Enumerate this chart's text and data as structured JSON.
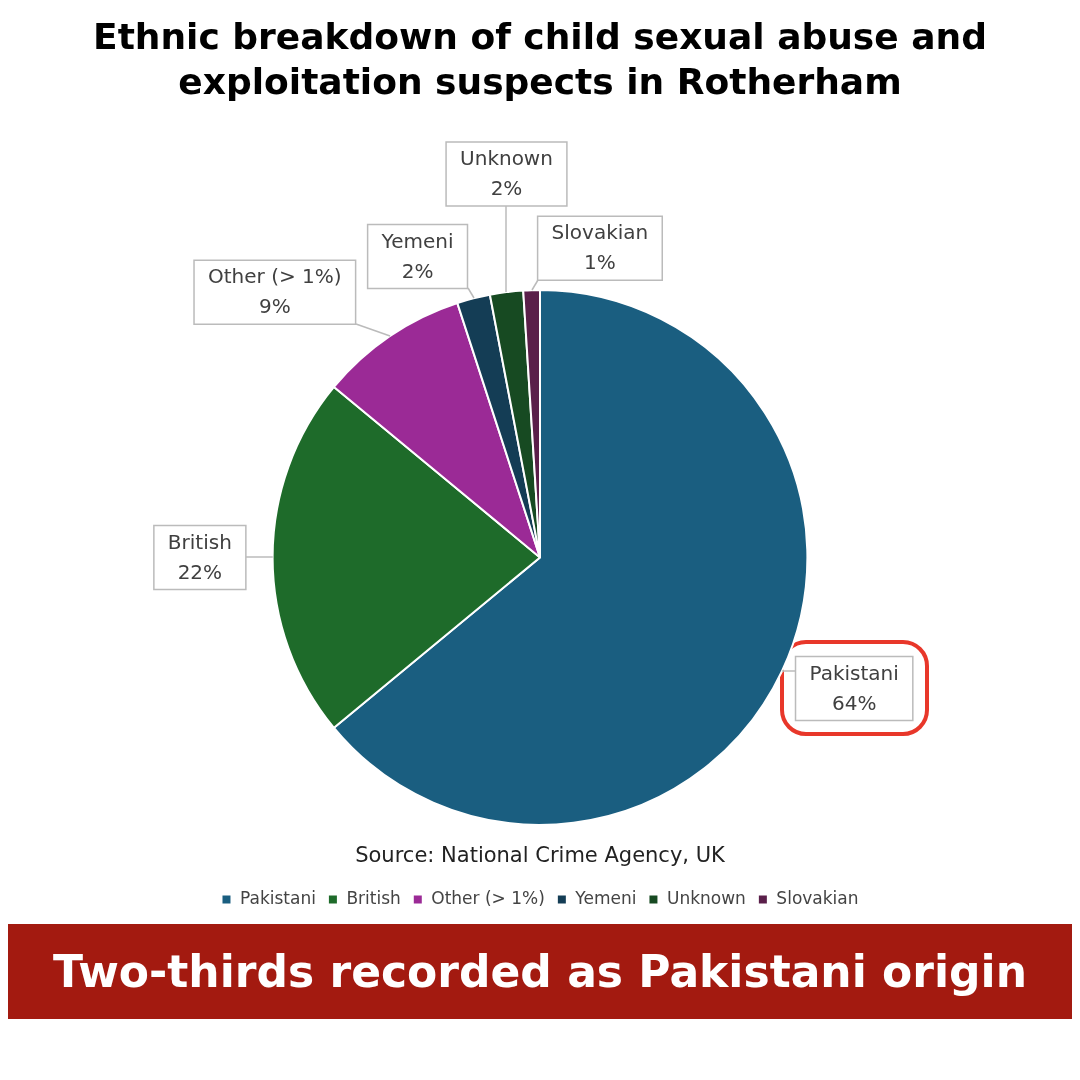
{
  "chart_data": {
    "type": "pie",
    "title": "Ethnic breakdown of child sexual abuse and exploitation suspects in  Rotherham",
    "subtitle": "Two-thirds recorded as Pakistani origin",
    "categories": [
      "Pakistani",
      "British",
      "Other (> 1%)",
      "Yemeni",
      "Unknown",
      "Slovakian"
    ],
    "values": [
      64,
      22,
      9,
      2,
      2,
      1
    ],
    "colors": [
      "#1a5e80",
      "#1e6b2a",
      "#9b2a96",
      "#143d55",
      "#174a22",
      "#5a1f4a"
    ],
    "value_labels": [
      "64%",
      "22%",
      "9%",
      "2%",
      "2%",
      "1%"
    ],
    "legend": "bottom",
    "annotations": [
      "Source: National Crime Agency, UK"
    ]
  }
}
